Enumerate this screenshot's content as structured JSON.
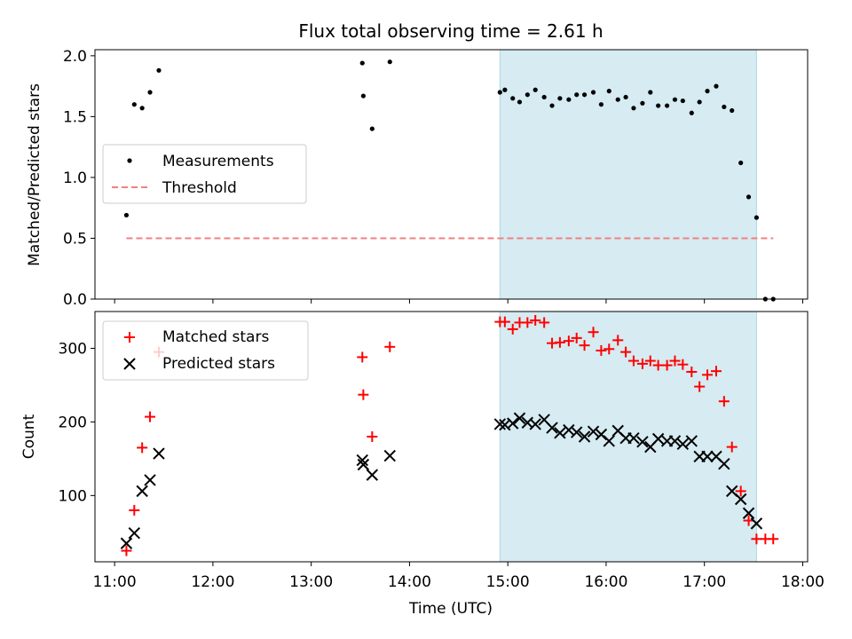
{
  "figure": {
    "title": "Flux total observing time = 2.61 h",
    "shade_color": "#add8e6",
    "threshold_color": "#f08080",
    "matched_color": "#ff0000",
    "predicted_color": "#000000",
    "shaded_interval": {
      "start": 14.92,
      "end": 17.53
    }
  },
  "chart_data": [
    {
      "type": "scatter",
      "title": "Flux total observing time = 2.61 h",
      "ylabel": "Matched/Predicted stars",
      "xlim": [
        10.8,
        18.05
      ],
      "ylim": [
        0,
        2.05
      ],
      "yticks": [
        0.0,
        0.5,
        1.0,
        1.5,
        2.0
      ],
      "ytick_labels": [
        "0.0",
        "0.5",
        "1.0",
        "1.5",
        "2.0"
      ],
      "legend_placement": "center-left",
      "series": [
        {
          "name": "Measurements",
          "marker": "dot",
          "x": [
            11.12,
            11.2,
            11.28,
            11.36,
            11.45,
            13.52,
            13.53,
            13.62,
            13.8,
            14.92,
            14.97,
            15.05,
            15.12,
            15.2,
            15.28,
            15.37,
            15.45,
            15.53,
            15.62,
            15.7,
            15.78,
            15.87,
            15.95,
            16.03,
            16.12,
            16.2,
            16.28,
            16.37,
            16.45,
            16.53,
            16.62,
            16.7,
            16.78,
            16.87,
            16.95,
            17.03,
            17.12,
            17.2,
            17.28,
            17.37,
            17.45,
            17.53,
            17.62,
            17.7
          ],
          "y": [
            0.69,
            1.6,
            1.57,
            1.7,
            1.88,
            1.94,
            1.67,
            1.4,
            1.95,
            1.7,
            1.72,
            1.65,
            1.62,
            1.68,
            1.72,
            1.66,
            1.59,
            1.65,
            1.64,
            1.68,
            1.68,
            1.7,
            1.6,
            1.71,
            1.64,
            1.66,
            1.57,
            1.61,
            1.7,
            1.59,
            1.59,
            1.64,
            1.63,
            1.53,
            1.62,
            1.71,
            1.75,
            1.58,
            1.55,
            1.12,
            0.84,
            0.67,
            0.0,
            0.0
          ]
        },
        {
          "name": "Threshold",
          "marker": "dashed-line",
          "x": [
            11.12,
            17.7
          ],
          "y": [
            0.5,
            0.5
          ]
        }
      ]
    },
    {
      "type": "scatter",
      "ylabel": "Count",
      "xlabel": "Time (UTC)",
      "xlim": [
        10.8,
        18.05
      ],
      "ylim": [
        10,
        350
      ],
      "yticks": [
        100,
        200,
        300
      ],
      "ytick_labels": [
        "100",
        "200",
        "300"
      ],
      "xticks": [
        11,
        12,
        13,
        14,
        15,
        16,
        17,
        18
      ],
      "xtick_labels": [
        "11:00",
        "12:00",
        "13:00",
        "14:00",
        "15:00",
        "16:00",
        "17:00",
        "18:00"
      ],
      "legend_placement": "upper-left",
      "series": [
        {
          "name": "Matched stars",
          "marker": "plus",
          "x": [
            11.12,
            11.2,
            11.28,
            11.36,
            11.45,
            13.52,
            13.53,
            13.62,
            13.8,
            14.92,
            14.97,
            15.05,
            15.12,
            15.2,
            15.28,
            15.37,
            15.45,
            15.53,
            15.62,
            15.7,
            15.78,
            15.87,
            15.95,
            16.03,
            16.12,
            16.2,
            16.28,
            16.37,
            16.45,
            16.53,
            16.62,
            16.7,
            16.78,
            16.87,
            16.95,
            17.03,
            17.12,
            17.2,
            17.28,
            17.37,
            17.45,
            17.53,
            17.62,
            17.7
          ],
          "y": [
            25,
            80,
            165,
            207,
            295,
            288,
            237,
            180,
            302,
            336,
            336,
            326,
            335,
            335,
            338,
            335,
            307,
            308,
            310,
            314,
            304,
            322,
            297,
            299,
            311,
            295,
            283,
            279,
            283,
            277,
            277,
            283,
            278,
            268,
            248,
            264,
            269,
            228,
            166,
            106,
            66,
            41,
            41,
            41
          ]
        },
        {
          "name": "Predicted stars",
          "marker": "x",
          "x": [
            11.12,
            11.2,
            11.28,
            11.36,
            11.45,
            13.52,
            13.53,
            13.62,
            13.8,
            14.92,
            14.97,
            15.05,
            15.12,
            15.2,
            15.28,
            15.37,
            15.45,
            15.53,
            15.62,
            15.7,
            15.78,
            15.87,
            15.95,
            16.03,
            16.12,
            16.2,
            16.28,
            16.37,
            16.45,
            16.53,
            16.62,
            16.7,
            16.78,
            16.87,
            16.95,
            17.03,
            17.12,
            17.2,
            17.28,
            17.37,
            17.45,
            17.53
          ],
          "y": [
            35,
            49,
            106,
            121,
            157,
            148,
            142,
            128,
            154,
            197,
            196,
            198,
            205,
            199,
            197,
            203,
            192,
            185,
            189,
            186,
            180,
            187,
            183,
            174,
            188,
            178,
            178,
            173,
            166,
            177,
            174,
            174,
            170,
            174,
            153,
            153,
            153,
            143,
            106,
            95,
            76,
            62
          ]
        }
      ]
    }
  ]
}
